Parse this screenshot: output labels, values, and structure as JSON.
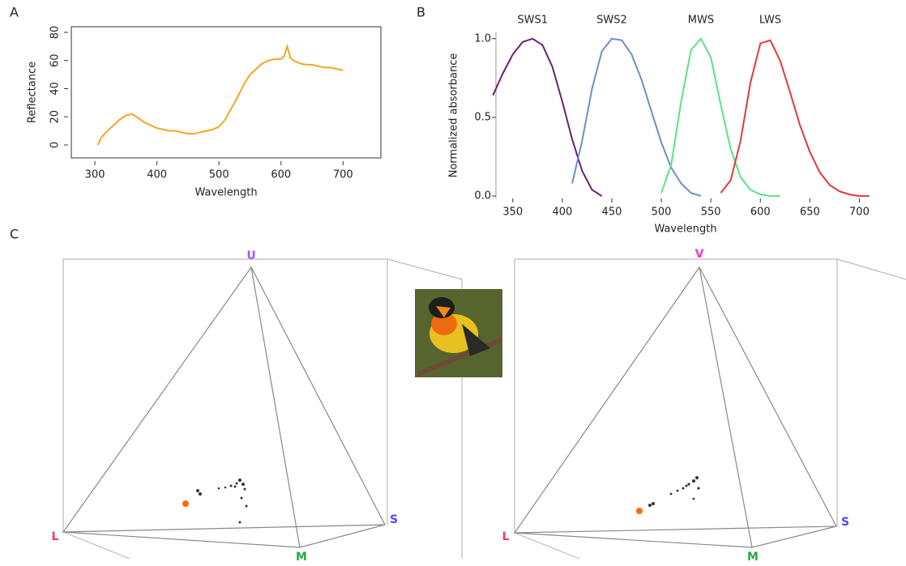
{
  "panel_labels": [
    "A",
    "B",
    "C"
  ],
  "chart_data": [
    {
      "type": "line",
      "x_label": "Wavelength",
      "y_label": "Reflectance",
      "color": "#f5a623",
      "x": [
        305,
        310,
        320,
        330,
        340,
        350,
        360,
        370,
        380,
        390,
        400,
        410,
        420,
        430,
        440,
        450,
        460,
        470,
        480,
        490,
        500,
        510,
        520,
        530,
        540,
        550,
        560,
        570,
        580,
        590,
        600,
        605,
        610,
        615,
        620,
        630,
        640,
        650,
        660,
        670,
        680,
        690,
        700
      ],
      "values": [
        0,
        5,
        10,
        14,
        18,
        21,
        22,
        19,
        16,
        14,
        12,
        11,
        10,
        10,
        9,
        8,
        8,
        9,
        10,
        11,
        13,
        18,
        26,
        34,
        43,
        50,
        54,
        58,
        60,
        61,
        61,
        63,
        70,
        62,
        60,
        58,
        57,
        57,
        56,
        55,
        55,
        54,
        53
      ],
      "xlim": [
        262,
        761
      ],
      "ylim": [
        -9.2,
        84
      ],
      "xticks": [
        300,
        400,
        500,
        600,
        700
      ],
      "yticks": [
        0,
        20,
        40,
        60,
        80
      ]
    },
    {
      "type": "line",
      "x_label": "Wavelength",
      "y_label": "Normalized absorbance",
      "x": [
        330,
        340,
        350,
        360,
        370,
        380,
        390,
        400,
        410,
        420,
        430,
        440,
        450,
        460,
        470,
        480,
        490,
        500,
        510,
        520,
        530,
        540,
        550,
        560,
        570,
        580,
        590,
        600,
        610,
        620,
        630,
        640,
        650,
        660,
        670,
        680,
        690,
        700,
        710
      ],
      "series": [
        {
          "name": "SWS1",
          "color": "#6b2070",
          "values": [
            0.64,
            0.78,
            0.9,
            0.98,
            1.0,
            0.96,
            0.82,
            0.6,
            0.36,
            0.16,
            0.04,
            0,
            null,
            null,
            null,
            null,
            null,
            null,
            null,
            null,
            null,
            null,
            null,
            null,
            null,
            null,
            null,
            null,
            null,
            null,
            null,
            null,
            null,
            null,
            null,
            null,
            null,
            null,
            null
          ]
        },
        {
          "name": "SWS2",
          "color": "#6a8fc8",
          "values": [
            null,
            null,
            null,
            null,
            null,
            null,
            null,
            null,
            0.08,
            0.35,
            0.68,
            0.92,
            1.0,
            0.99,
            0.9,
            0.74,
            0.54,
            0.34,
            0.18,
            0.08,
            0.02,
            0,
            null,
            null,
            null,
            null,
            null,
            null,
            null,
            null,
            null,
            null,
            null,
            null,
            null,
            null,
            null,
            null,
            null
          ]
        },
        {
          "name": "MWS",
          "color": "#5ee08a",
          "values": [
            null,
            null,
            null,
            null,
            null,
            null,
            null,
            null,
            null,
            null,
            null,
            null,
            null,
            null,
            null,
            null,
            null,
            0.02,
            0.2,
            0.6,
            0.93,
            1.0,
            0.88,
            0.58,
            0.3,
            0.12,
            0.04,
            0.01,
            0,
            0,
            null,
            null,
            null,
            null,
            null,
            null,
            null,
            null,
            null
          ]
        },
        {
          "name": "LWS",
          "color": "#e03a3a",
          "values": [
            null,
            null,
            null,
            null,
            null,
            null,
            null,
            null,
            null,
            null,
            null,
            null,
            null,
            null,
            null,
            null,
            null,
            null,
            null,
            null,
            null,
            null,
            null,
            0.02,
            0.1,
            0.35,
            0.72,
            0.97,
            0.99,
            0.86,
            0.66,
            0.45,
            0.28,
            0.15,
            0.07,
            0.03,
            0.01,
            0,
            0
          ]
        }
      ],
      "xlim": [
        333,
        716
      ],
      "ylim": [
        -0.015,
        1.04
      ],
      "xticks": [
        350,
        400,
        450,
        500,
        550,
        600,
        650,
        700
      ],
      "yticks": [
        {
          "value": 0,
          "label": "0.0"
        },
        {
          "value": 0.5,
          "label": "0.5"
        },
        {
          "value": 1,
          "label": "1.0"
        }
      ]
    }
  ],
  "color_spaces": [
    {
      "apex": "U",
      "left": "L",
      "right": "S",
      "front": "M"
    },
    {
      "apex": "V",
      "left": "L",
      "right": "S",
      "front": "M"
    }
  ]
}
